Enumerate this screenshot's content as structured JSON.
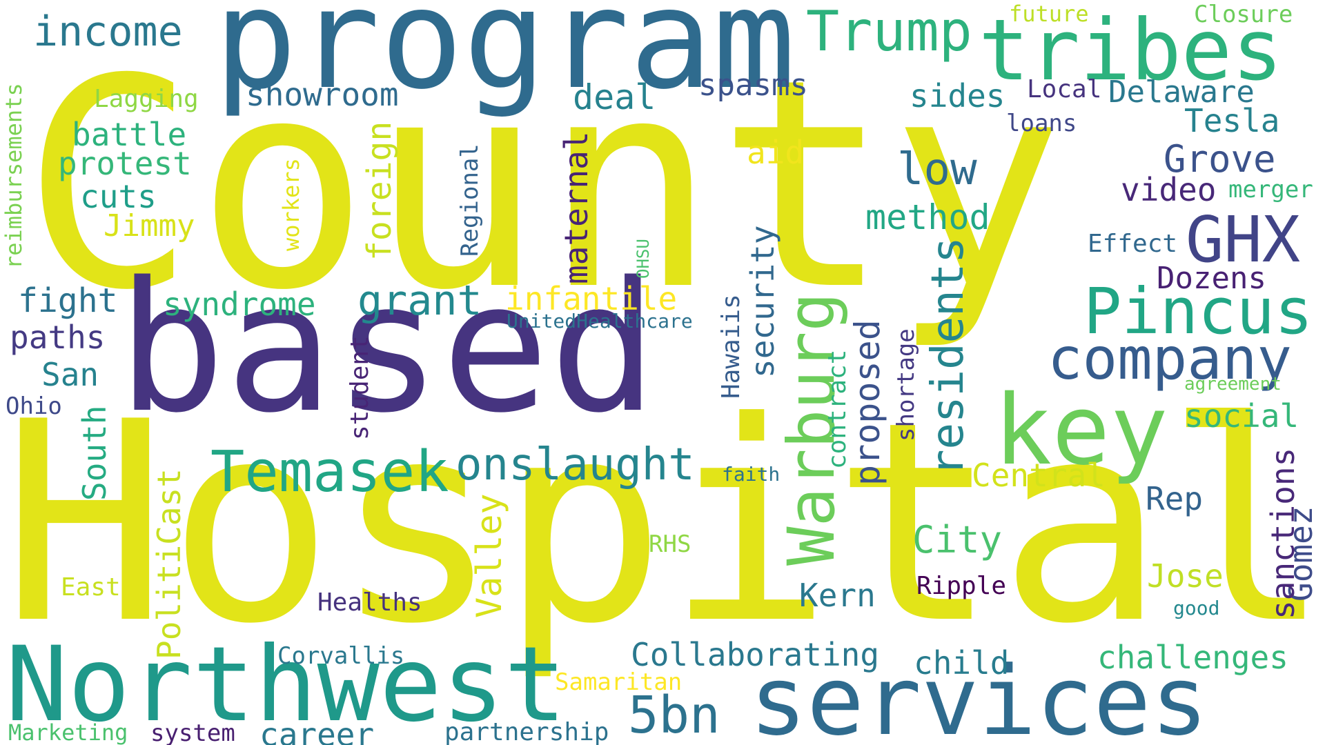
{
  "word_cloud": {
    "words": [
      {
        "id": "county",
        "text": "County",
        "color": "#e2e418"
      },
      {
        "id": "hospital",
        "text": "Hospital",
        "color": "#e2e418"
      },
      {
        "id": "based",
        "text": "based",
        "color": "#463480"
      },
      {
        "id": "program",
        "text": "program",
        "color": "#2f6b8e"
      },
      {
        "id": "tribes",
        "text": "tribes",
        "color": "#2db27d"
      },
      {
        "id": "northwest",
        "text": "Northwest",
        "color": "#1f998a"
      },
      {
        "id": "services",
        "text": "services",
        "color": "#2f6b8e"
      },
      {
        "id": "key",
        "text": "key",
        "color": "#6ccd5a"
      },
      {
        "id": "pincus",
        "text": "Pincus",
        "color": "#21a685"
      },
      {
        "id": "company",
        "text": "company",
        "color": "#365c8d"
      },
      {
        "id": "warburg",
        "text": "Warburg",
        "color": "#6ccd5a"
      },
      {
        "id": "temasek",
        "text": "Temasek",
        "color": "#21a685"
      },
      {
        "id": "trump",
        "text": "Trump",
        "color": "#2db27d"
      },
      {
        "id": "gomez",
        "text": "Gomez",
        "color": "#3e4c8a"
      },
      {
        "id": "ghx",
        "text": "GHX",
        "color": "#414487"
      },
      {
        "id": "income",
        "text": "income",
        "color": "#2a788e"
      },
      {
        "id": "onslaught",
        "text": "onslaught",
        "color": "#25858e"
      },
      {
        "id": "5bn",
        "text": "5bn",
        "color": "#2c728e"
      },
      {
        "id": "grant",
        "text": "grant",
        "color": "#23898e"
      },
      {
        "id": "residents",
        "text": "residents",
        "color": "#25858e"
      },
      {
        "id": "city",
        "text": "City",
        "color": "#4ac16d"
      },
      {
        "id": "grove",
        "text": "Grove",
        "color": "#3b528b"
      },
      {
        "id": "delaware",
        "text": "Delaware",
        "color": "#2a788e"
      },
      {
        "id": "showroom",
        "text": "showroom",
        "color": "#2f6b8e"
      },
      {
        "id": "deal",
        "text": "deal",
        "color": "#26828e"
      },
      {
        "id": "spasms",
        "text": "spasms",
        "color": "#3b528b"
      },
      {
        "id": "low",
        "text": "low",
        "color": "#2f6b8e"
      },
      {
        "id": "sides",
        "text": "sides",
        "color": "#25858e"
      },
      {
        "id": "local",
        "text": "Local",
        "color": "#46337e"
      },
      {
        "id": "tesla",
        "text": "Tesla",
        "color": "#26828e"
      },
      {
        "id": "loans",
        "text": "loans",
        "color": "#3f4788"
      },
      {
        "id": "video",
        "text": "video",
        "color": "#482878"
      },
      {
        "id": "merger",
        "text": "merger",
        "color": "#35b779"
      },
      {
        "id": "future",
        "text": "future",
        "color": "#bddf26"
      },
      {
        "id": "closure",
        "text": "Closure",
        "color": "#6ccd5a"
      },
      {
        "id": "lagging",
        "text": "Lagging",
        "color": "#8fd744"
      },
      {
        "id": "battle",
        "text": "battle",
        "color": "#2db27d"
      },
      {
        "id": "protest",
        "text": "protest",
        "color": "#35b779"
      },
      {
        "id": "cuts",
        "text": "cuts",
        "color": "#1f9e89"
      },
      {
        "id": "jimmy",
        "text": "Jimmy",
        "color": "#d8e219"
      },
      {
        "id": "fight",
        "text": "fight",
        "color": "#2c728e"
      },
      {
        "id": "paths",
        "text": "paths",
        "color": "#443a83"
      },
      {
        "id": "san",
        "text": "San",
        "color": "#26828e"
      },
      {
        "id": "ohio",
        "text": "Ohio",
        "color": "#3e4989"
      },
      {
        "id": "syndrome",
        "text": "syndrome",
        "color": "#2db27d"
      },
      {
        "id": "infantile",
        "text": "infantile",
        "color": "#fde725"
      },
      {
        "id": "unitedhealthcare",
        "text": "UnitedHealthcare",
        "color": "#2c728e"
      },
      {
        "id": "aid",
        "text": "aid",
        "color": "#f1e51d"
      },
      {
        "id": "method",
        "text": "method",
        "color": "#22a785"
      },
      {
        "id": "effect",
        "text": "Effect",
        "color": "#31688e"
      },
      {
        "id": "dozens",
        "text": "Dozens",
        "color": "#482173"
      },
      {
        "id": "social",
        "text": "social",
        "color": "#35b779"
      },
      {
        "id": "agreement",
        "text": "agreement",
        "color": "#6ccd5a"
      },
      {
        "id": "central",
        "text": "Central",
        "color": "#d2e21b"
      },
      {
        "id": "rep",
        "text": "Rep",
        "color": "#33638d"
      },
      {
        "id": "jose",
        "text": "Jose",
        "color": "#c0df25"
      },
      {
        "id": "good",
        "text": "good",
        "color": "#23888e"
      },
      {
        "id": "ripple",
        "text": "Ripple",
        "color": "#440154"
      },
      {
        "id": "kern",
        "text": "Kern",
        "color": "#2a788e"
      },
      {
        "id": "collaborating",
        "text": "Collaborating",
        "color": "#2a788e"
      },
      {
        "id": "child",
        "text": "child",
        "color": "#287c8e"
      },
      {
        "id": "challenges",
        "text": "challenges",
        "color": "#35b779"
      },
      {
        "id": "rhs",
        "text": "RHS",
        "color": "#8fd744"
      },
      {
        "id": "faith",
        "text": "faith",
        "color": "#2c728e"
      },
      {
        "id": "east",
        "text": "East",
        "color": "#c8e020"
      },
      {
        "id": "healths",
        "text": "Healths",
        "color": "#46327e"
      },
      {
        "id": "corvallis",
        "text": "Corvallis",
        "color": "#2a788e"
      },
      {
        "id": "samaritan",
        "text": "Samaritan",
        "color": "#fde725"
      },
      {
        "id": "marketing",
        "text": "Marketing",
        "color": "#4ac16d"
      },
      {
        "id": "system",
        "text": "system",
        "color": "#481f70"
      },
      {
        "id": "career",
        "text": "career",
        "color": "#2a788e"
      },
      {
        "id": "partnership",
        "text": "partnership",
        "color": "#2c728e"
      },
      {
        "id": "reimbursements",
        "text": "reimbursements",
        "color": "#7ad151"
      },
      {
        "id": "workers",
        "text": "workers",
        "color": "#e2e418"
      },
      {
        "id": "foreign",
        "text": "foreign",
        "color": "#c8e020"
      },
      {
        "id": "regional",
        "text": "Regional",
        "color": "#33638d"
      },
      {
        "id": "maternal",
        "text": "maternal",
        "color": "#482475"
      },
      {
        "id": "ohsu",
        "text": "OHSU",
        "color": "#4ac16d"
      },
      {
        "id": "security",
        "text": "security",
        "color": "#31688e"
      },
      {
        "id": "hawaiis",
        "text": "Hawaiis",
        "color": "#365c8d"
      },
      {
        "id": "student",
        "text": "student",
        "color": "#482475"
      },
      {
        "id": "contract",
        "text": "contract",
        "color": "#2db27d"
      },
      {
        "id": "proposed",
        "text": "proposed",
        "color": "#3b528b"
      },
      {
        "id": "shortage",
        "text": "shortage",
        "color": "#443983"
      },
      {
        "id": "sanctions",
        "text": "sanctions",
        "color": "#482878"
      },
      {
        "id": "south",
        "text": "South",
        "color": "#25ab82"
      },
      {
        "id": "politicast",
        "text": "PolitiCast",
        "color": "#c8e020"
      },
      {
        "id": "valley",
        "text": "Valley",
        "color": "#d8e219"
      }
    ]
  }
}
